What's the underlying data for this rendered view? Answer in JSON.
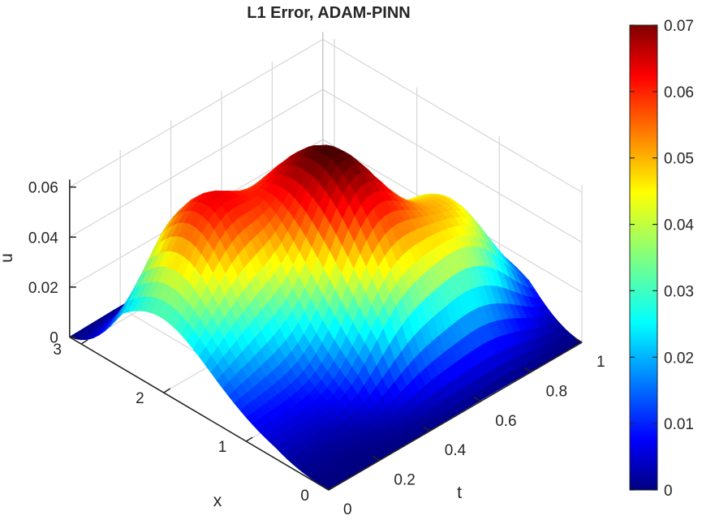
{
  "chart_data": {
    "type": "surface",
    "title": "L1 Error, ADAM-PINN",
    "xlabel": "x",
    "tlabel": "t",
    "zlabel": "u",
    "x_range": [
      0,
      3.14
    ],
    "t_range": [
      0,
      1
    ],
    "z_range": [
      0,
      0.065
    ],
    "x_ticks": [
      "0",
      "1",
      "2",
      "3"
    ],
    "t_ticks": [
      "0",
      "0.2",
      "0.4",
      "0.6",
      "0.8",
      "1"
    ],
    "z_ticks": [
      "0",
      "0.02",
      "0.04",
      "0.06"
    ],
    "colorbar": {
      "colormap": "jet",
      "range": [
        0,
        0.07
      ],
      "ticks": [
        "0",
        "0.01",
        "0.02",
        "0.03",
        "0.04",
        "0.05",
        "0.06",
        "0.07"
      ]
    },
    "grid": true,
    "peaks": [
      {
        "x": 1.57,
        "t": 0.53,
        "u": 0.07
      },
      {
        "x": 2.1,
        "t": 0.25,
        "u": 0.054
      },
      {
        "x": 1.4,
        "t": 0.85,
        "u": 0.03
      },
      {
        "x": 0.8,
        "t": 0.75,
        "u": 0.023
      },
      {
        "x": 2.4,
        "t": 0.0,
        "u": 0.017
      }
    ]
  }
}
